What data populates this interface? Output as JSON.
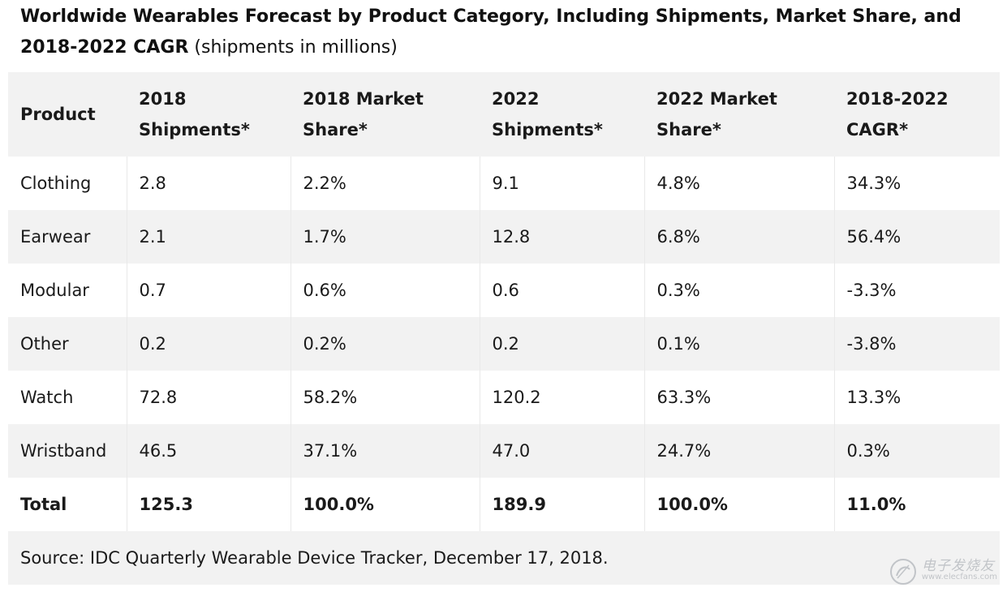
{
  "caption": {
    "bold": "Worldwide Wearables Forecast by Product Category, Including Shipments, Market Share, and 2018-2022 CAGR",
    "normal": " (shipments in millions)"
  },
  "table": {
    "headers": [
      "Product",
      "2018 Shipments*",
      "2018 Market Share*",
      "2022 Shipments*",
      "2022 Market Share*",
      "2018-2022 CAGR*"
    ],
    "rows": [
      [
        "Clothing",
        "2.8",
        "2.2%",
        "9.1",
        "4.8%",
        "34.3%"
      ],
      [
        "Earwear",
        "2.1",
        "1.7%",
        "12.8",
        "6.8%",
        "56.4%"
      ],
      [
        "Modular",
        "0.7",
        "0.6%",
        "0.6",
        "0.3%",
        "-3.3%"
      ],
      [
        "Other",
        "0.2",
        "0.2%",
        "0.2",
        "0.1%",
        "-3.8%"
      ],
      [
        "Watch",
        "72.8",
        "58.2%",
        "120.2",
        "63.3%",
        "13.3%"
      ],
      [
        "Wristband",
        "46.5",
        "37.1%",
        "47.0",
        "24.7%",
        "0.3%"
      ]
    ],
    "total": [
      "Total",
      "125.3",
      "100.0%",
      "189.9",
      "100.0%",
      "11.0%"
    ],
    "source": "Source: IDC Quarterly Wearable Device Tracker, December 17, 2018."
  },
  "watermark": {
    "icon": "elecfans-logo-icon",
    "site_name": "电子发烧友",
    "url": "www.elecfans.com"
  }
}
